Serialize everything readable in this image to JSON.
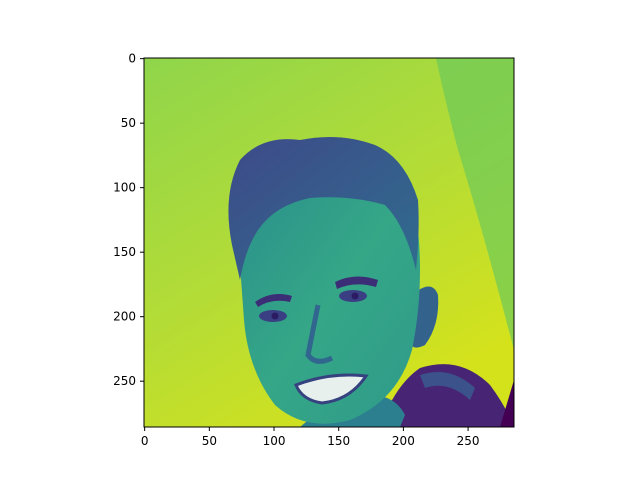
{
  "chart_data": {
    "type": "heatmap",
    "image_width": 286,
    "image_height": 286,
    "colormap": "viridis",
    "xlim": [
      -0.5,
      285.5
    ],
    "ylim": [
      285.5,
      -0.5
    ],
    "xticks": [
      0,
      50,
      100,
      150,
      200,
      250
    ],
    "yticks": [
      0,
      50,
      100,
      150,
      200,
      250
    ],
    "xtick_labels": [
      "0",
      "50",
      "100",
      "150",
      "200",
      "250"
    ],
    "ytick_labels": [
      "0",
      "50",
      "100",
      "150",
      "200",
      "250"
    ],
    "content": "grayscale photo of a smiling man rendered with the viridis colormap",
    "colors": {
      "background_yellow": "#c8df2a",
      "background_green": "#8cd34a",
      "teal": "#2f9c8a",
      "blue": "#39568c",
      "purple": "#44216e"
    }
  }
}
